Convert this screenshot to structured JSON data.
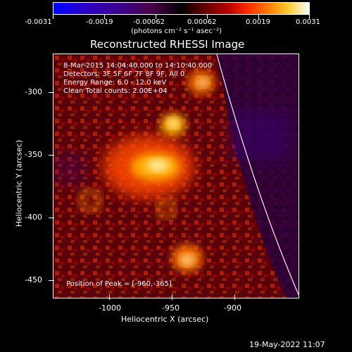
{
  "colorbar": {
    "ticks": [
      "-0.0031",
      "-0.0019",
      "-0.00062",
      "0.00062",
      "0.0019",
      "0.0031"
    ],
    "units": "(photons cm⁻² s⁻¹ asec⁻²)"
  },
  "plot": {
    "title": "Reconstructed RHESSI Image",
    "info": [
      "8-Mar-2015 14:04:40.000 to 14:10:40.000",
      "Detectors: 3F 5F 6F 7F 8F 9F, All 0",
      "Energy Range: 6.0 - 12.0 keV",
      "Clean    Total counts: 2.00E+04"
    ],
    "peak_label": "Position of Peak = [-960,-365]",
    "xlabel": "Heliocentric X (arcsec)",
    "ylabel": "Heliocentric Y (arcsec)",
    "xticks": [
      "-1000",
      "-950",
      "-900"
    ],
    "yticks": [
      "-300",
      "-350",
      "-400",
      "-450"
    ]
  },
  "footer": {
    "date": "19-May-2022 11:07"
  }
}
